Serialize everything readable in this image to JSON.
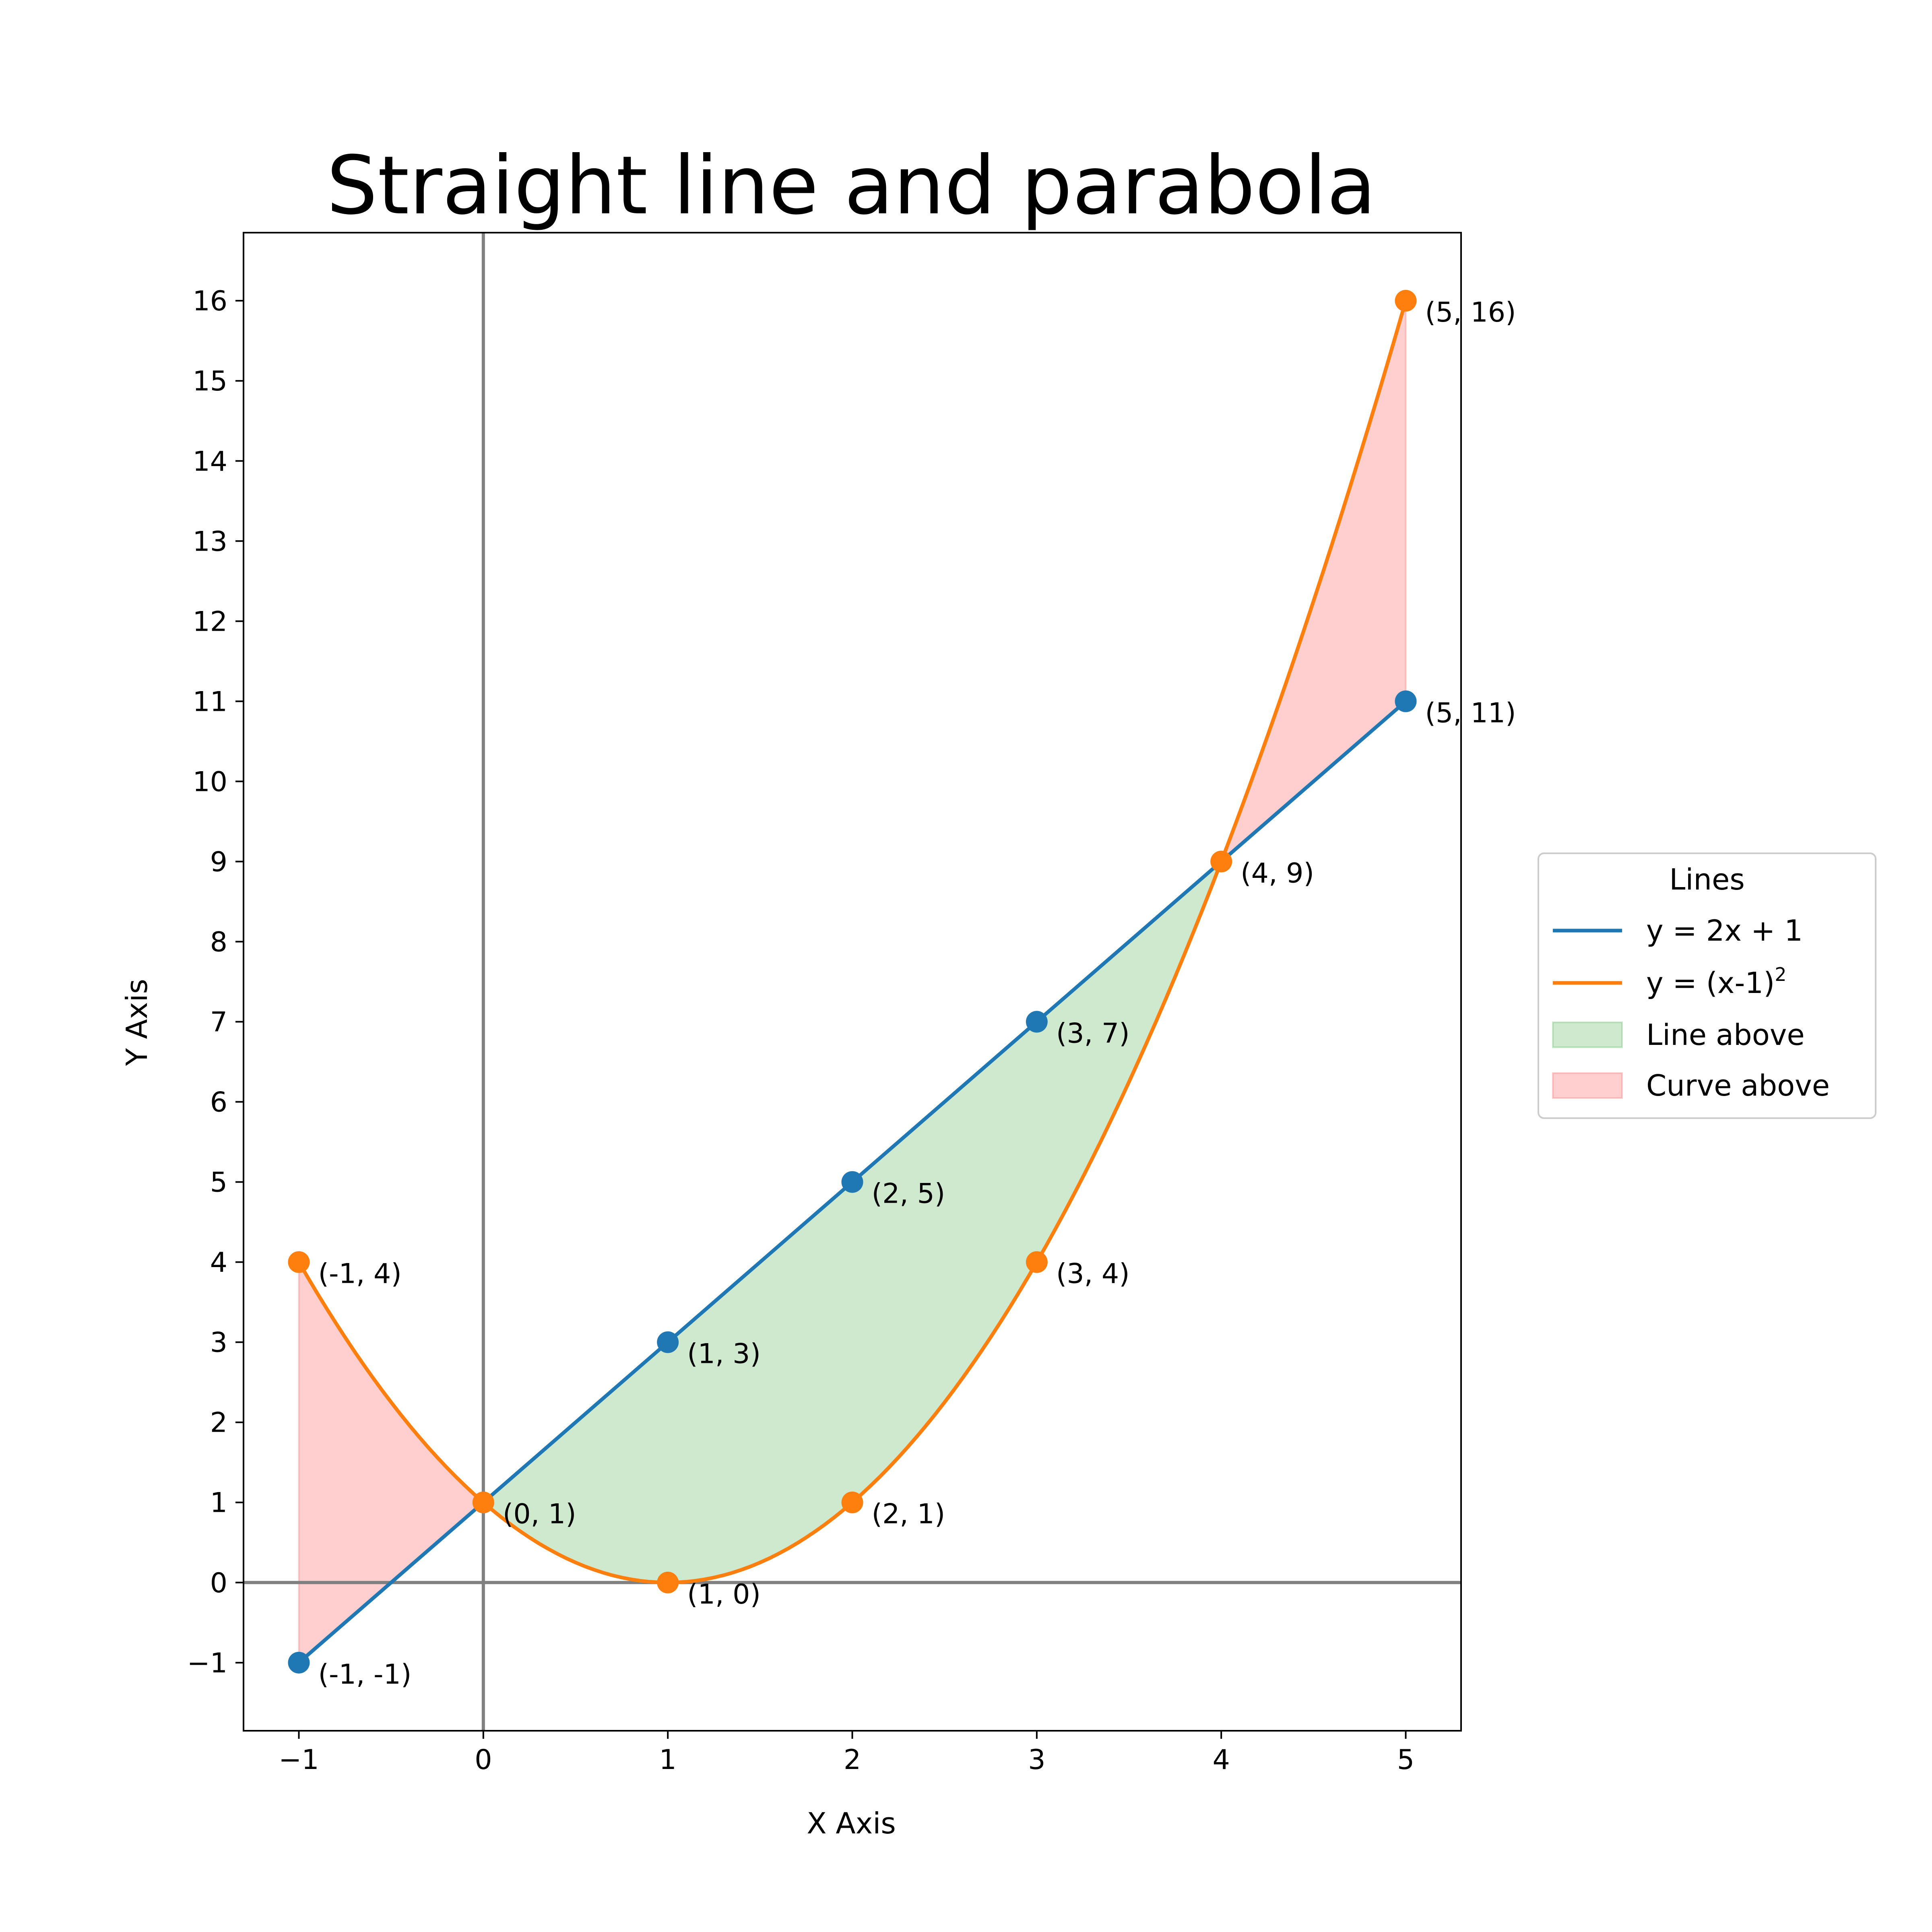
{
  "chart_data": {
    "type": "line",
    "title": "Straight line and parabola",
    "xlabel": "X Axis",
    "ylabel": "Y Axis",
    "xlim": [
      -1.3,
      5.3
    ],
    "ylim": [
      -1.85,
      16.85
    ],
    "x_ticks": [
      -1,
      0,
      1,
      2,
      3,
      4,
      5
    ],
    "x_tick_labels": [
      "−1",
      "0",
      "1",
      "2",
      "3",
      "4",
      "5"
    ],
    "y_ticks": [
      -1,
      0,
      1,
      2,
      3,
      4,
      5,
      6,
      7,
      8,
      9,
      10,
      11,
      12,
      13,
      14,
      15,
      16
    ],
    "y_tick_labels": [
      "−1",
      "0",
      "1",
      "2",
      "3",
      "4",
      "5",
      "6",
      "7",
      "8",
      "9",
      "10",
      "11",
      "12",
      "13",
      "14",
      "15",
      "16"
    ],
    "grid": false,
    "reference_lines": {
      "x": 0,
      "y": 0,
      "color": "#808080"
    },
    "series": [
      {
        "name": "y = 2x + 1",
        "color": "#1f77b4",
        "x": [
          -1,
          0,
          1,
          2,
          3,
          4,
          5
        ],
        "y": [
          -1,
          1,
          3,
          5,
          7,
          9,
          11
        ],
        "marked_points": [
          {
            "x": -1,
            "y": -1,
            "label": "(-1, -1)"
          },
          {
            "x": 1,
            "y": 3,
            "label": "(1, 3)"
          },
          {
            "x": 2,
            "y": 5,
            "label": "(2, 5)"
          },
          {
            "x": 3,
            "y": 7,
            "label": "(3, 7)"
          },
          {
            "x": 5,
            "y": 11,
            "label": "(5, 11)"
          }
        ]
      },
      {
        "name_main": "y = (x-1)",
        "name_sup": "2",
        "color": "#ff7f0e",
        "x": [
          -1,
          -0.5,
          0,
          0.5,
          1,
          1.5,
          2,
          2.5,
          3,
          3.5,
          4,
          4.5,
          5
        ],
        "y": [
          4,
          2.25,
          1,
          0.25,
          0,
          0.25,
          1,
          2.25,
          4,
          6.25,
          9,
          12.25,
          16
        ],
        "marked_points": [
          {
            "x": -1,
            "y": 4,
            "label": "(-1, 4)"
          },
          {
            "x": 0,
            "y": 1,
            "label": "(0, 1)"
          },
          {
            "x": 1,
            "y": 0,
            "label": "(1, 0)"
          },
          {
            "x": 2,
            "y": 1,
            "label": "(2, 1)"
          },
          {
            "x": 3,
            "y": 4,
            "label": "(3, 4)"
          },
          {
            "x": 4,
            "y": 9,
            "label": "(4, 9)"
          },
          {
            "x": 5,
            "y": 16,
            "label": "(5, 16)"
          }
        ]
      }
    ],
    "fills": [
      {
        "name": "Line above",
        "color": "#2ca02c",
        "opacity": 0.23,
        "x_range": [
          0,
          4
        ]
      },
      {
        "name": "Curve above",
        "color": "#ff6666",
        "opacity": 0.32,
        "x_ranges": [
          [
            -1,
            0
          ],
          [
            4,
            5
          ]
        ]
      }
    ],
    "legend": {
      "title": "Lines",
      "placement": "center-right outside"
    }
  }
}
